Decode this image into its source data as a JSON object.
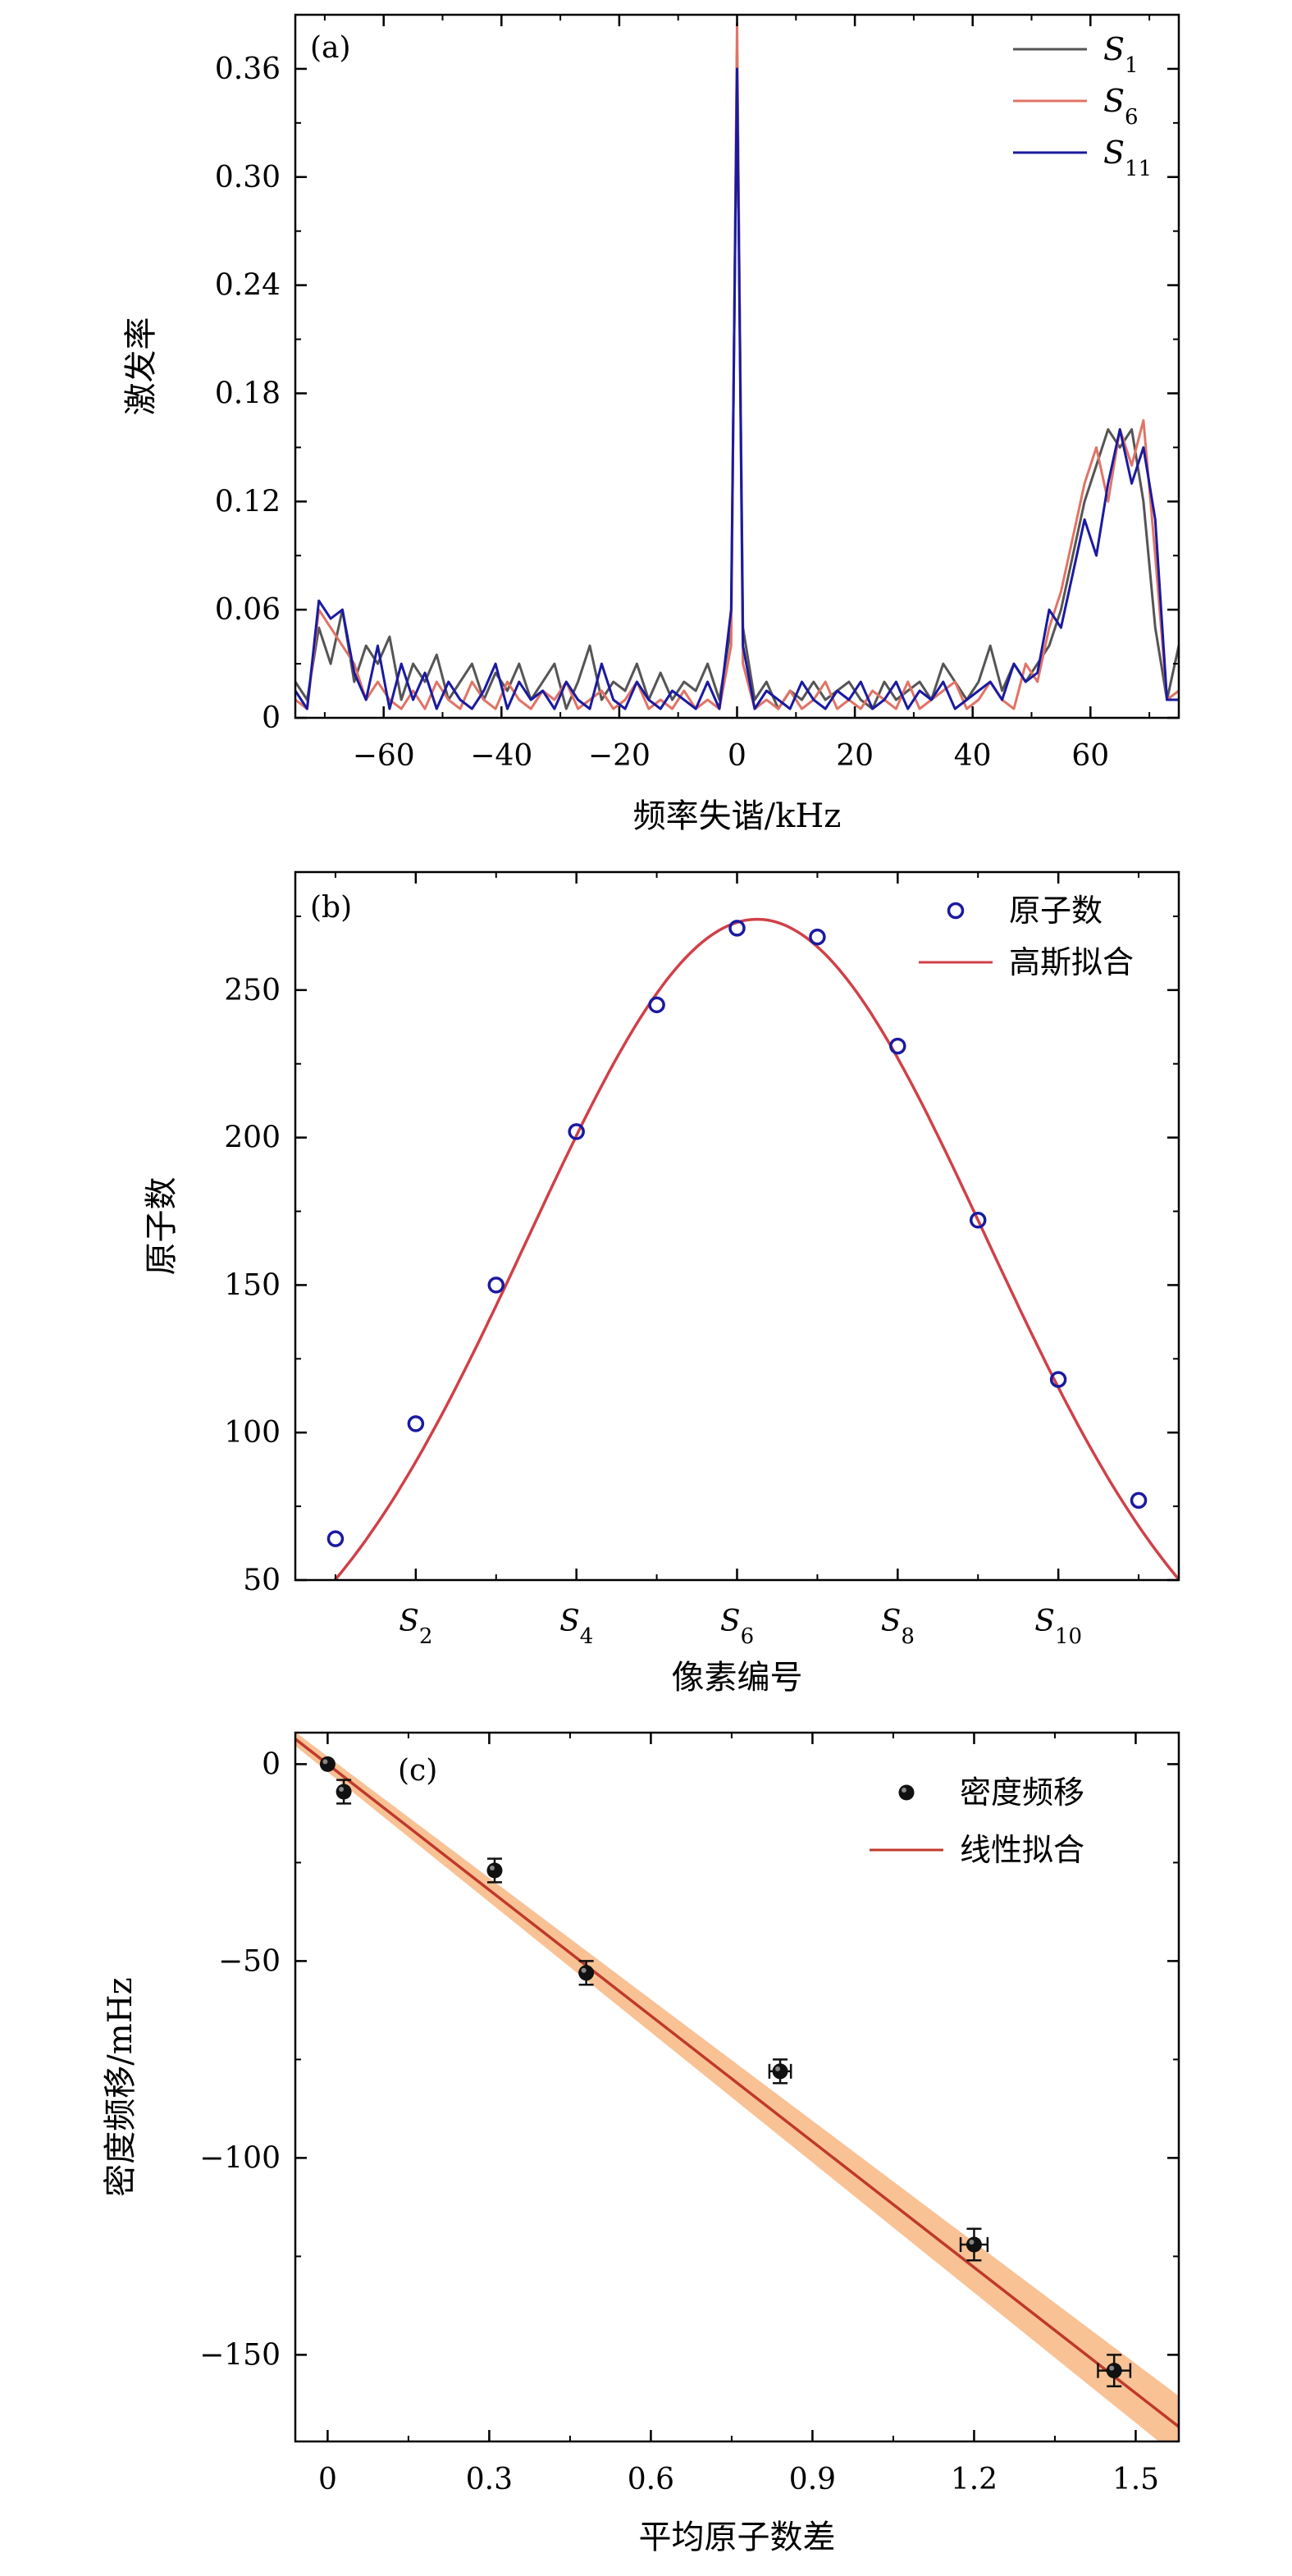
{
  "chart_data": [
    {
      "panel": "(a)",
      "type": "line",
      "xlabel": "频率失谐/kHz",
      "ylabel": "激发率",
      "xlim": [
        -75,
        75
      ],
      "ylim": [
        0,
        0.39
      ],
      "xticks": [
        -60,
        -40,
        -20,
        0,
        20,
        40,
        60
      ],
      "xtick_labels": [
        "−60",
        "−40",
        "−20",
        "0",
        "20",
        "40",
        "60"
      ],
      "yticks": [
        0,
        0.06,
        0.12,
        0.18,
        0.24,
        0.3,
        0.36
      ],
      "ytick_labels": [
        "0",
        "0.06",
        "0.12",
        "0.18",
        "0.24",
        "0.30",
        "0.36"
      ],
      "legend_position": "top-right",
      "grid": false,
      "series": [
        {
          "name": "S₁",
          "name_base": "S",
          "name_sub": "1",
          "color": "#555555",
          "x": [
            -75,
            -73,
            -71,
            -69,
            -67,
            -65,
            -63,
            -61,
            -59,
            -57,
            -55,
            -53,
            -51,
            -49,
            -47,
            -45,
            -43,
            -41,
            -39,
            -37,
            -35,
            -33,
            -31,
            -29,
            -27,
            -25,
            -23,
            -21,
            -19,
            -17,
            -15,
            -13,
            -11,
            -9,
            -7,
            -5,
            -3,
            -1,
            0,
            1,
            3,
            5,
            7,
            9,
            11,
            13,
            15,
            17,
            19,
            21,
            23,
            25,
            27,
            29,
            31,
            33,
            35,
            37,
            39,
            41,
            43,
            45,
            47,
            49,
            51,
            53,
            55,
            57,
            59,
            61,
            63,
            65,
            67,
            69,
            71,
            73,
            75
          ],
          "y": [
            0.02,
            0.01,
            0.05,
            0.03,
            0.06,
            0.02,
            0.04,
            0.03,
            0.045,
            0.01,
            0.03,
            0.02,
            0.035,
            0.01,
            0.02,
            0.03,
            0.01,
            0.025,
            0.015,
            0.03,
            0.01,
            0.02,
            0.03,
            0.005,
            0.02,
            0.04,
            0.01,
            0.02,
            0.015,
            0.03,
            0.01,
            0.025,
            0.01,
            0.02,
            0.015,
            0.03,
            0.01,
            0.05,
            0.37,
            0.05,
            0.01,
            0.02,
            0.005,
            0.015,
            0.01,
            0.02,
            0.01,
            0.015,
            0.02,
            0.01,
            0.005,
            0.02,
            0.01,
            0.015,
            0.02,
            0.01,
            0.03,
            0.02,
            0.01,
            0.02,
            0.04,
            0.015,
            0.03,
            0.02,
            0.03,
            0.04,
            0.06,
            0.09,
            0.12,
            0.14,
            0.16,
            0.15,
            0.16,
            0.12,
            0.05,
            0.01,
            0.04
          ]
        },
        {
          "name": "S₆",
          "name_base": "S",
          "name_sub": "6",
          "color": "#e07466",
          "x": [
            -75,
            -73,
            -71,
            -69,
            -67,
            -65,
            -63,
            -61,
            -59,
            -57,
            -55,
            -53,
            -51,
            -49,
            -47,
            -45,
            -43,
            -41,
            -39,
            -37,
            -35,
            -33,
            -31,
            -29,
            -27,
            -25,
            -23,
            -21,
            -19,
            -17,
            -15,
            -13,
            -11,
            -9,
            -7,
            -5,
            -3,
            -1,
            0,
            1,
            3,
            5,
            7,
            9,
            11,
            13,
            15,
            17,
            19,
            21,
            23,
            25,
            27,
            29,
            31,
            33,
            35,
            37,
            39,
            41,
            43,
            45,
            47,
            49,
            51,
            53,
            55,
            57,
            59,
            61,
            63,
            65,
            67,
            69,
            71,
            73,
            75
          ],
          "y": [
            0.01,
            0.005,
            0.06,
            0.05,
            0.04,
            0.03,
            0.01,
            0.02,
            0.01,
            0.005,
            0.015,
            0.005,
            0.02,
            0.01,
            0.005,
            0.02,
            0.01,
            0.005,
            0.02,
            0.01,
            0.005,
            0.015,
            0.01,
            0.02,
            0.005,
            0.01,
            0.015,
            0.005,
            0.01,
            0.02,
            0.005,
            0.01,
            0.005,
            0.015,
            0.005,
            0.01,
            0.005,
            0.04,
            0.385,
            0.03,
            0.005,
            0.01,
            0.005,
            0.015,
            0.005,
            0.01,
            0.02,
            0.005,
            0.01,
            0.005,
            0.015,
            0.01,
            0.005,
            0.02,
            0.005,
            0.01,
            0.015,
            0.02,
            0.005,
            0.01,
            0.02,
            0.01,
            0.005,
            0.03,
            0.02,
            0.05,
            0.07,
            0.1,
            0.13,
            0.15,
            0.12,
            0.16,
            0.14,
            0.165,
            0.09,
            0.01,
            0.015
          ]
        },
        {
          "name": "S₁₁",
          "name_base": "S",
          "name_sub": "11",
          "color": "#1a1aa0",
          "x": [
            -75,
            -73,
            -71,
            -69,
            -67,
            -65,
            -63,
            -61,
            -59,
            -57,
            -55,
            -53,
            -51,
            -49,
            -47,
            -45,
            -43,
            -41,
            -39,
            -37,
            -35,
            -33,
            -31,
            -29,
            -27,
            -25,
            -23,
            -21,
            -19,
            -17,
            -15,
            -13,
            -11,
            -9,
            -7,
            -5,
            -3,
            -1,
            0,
            1,
            3,
            5,
            7,
            9,
            11,
            13,
            15,
            17,
            19,
            21,
            23,
            25,
            27,
            29,
            31,
            33,
            35,
            37,
            39,
            41,
            43,
            45,
            47,
            49,
            51,
            53,
            55,
            57,
            59,
            61,
            63,
            65,
            67,
            69,
            71,
            73,
            75
          ],
          "y": [
            0.015,
            0.005,
            0.065,
            0.055,
            0.06,
            0.025,
            0.01,
            0.04,
            0.005,
            0.03,
            0.01,
            0.025,
            0.005,
            0.02,
            0.01,
            0.005,
            0.015,
            0.03,
            0.005,
            0.02,
            0.01,
            0.015,
            0.005,
            0.02,
            0.01,
            0.005,
            0.03,
            0.01,
            0.005,
            0.02,
            0.01,
            0.005,
            0.015,
            0.01,
            0.005,
            0.02,
            0.005,
            0.06,
            0.36,
            0.04,
            0.005,
            0.015,
            0.01,
            0.005,
            0.02,
            0.01,
            0.005,
            0.015,
            0.01,
            0.02,
            0.005,
            0.01,
            0.02,
            0.005,
            0.015,
            0.01,
            0.02,
            0.005,
            0.01,
            0.015,
            0.02,
            0.01,
            0.03,
            0.02,
            0.025,
            0.06,
            0.05,
            0.08,
            0.11,
            0.09,
            0.13,
            0.16,
            0.13,
            0.15,
            0.11,
            0.01,
            0.01
          ]
        }
      ]
    },
    {
      "panel": "(b)",
      "type": "scatter",
      "xlabel": "像素编号",
      "ylabel": "原子数",
      "xlim": [
        0.5,
        11.5
      ],
      "ylim": [
        50,
        290
      ],
      "xticks": [
        2,
        4,
        6,
        8,
        10
      ],
      "xtick_labels": [
        {
          "base": "S",
          "sub": "2"
        },
        {
          "base": "S",
          "sub": "4"
        },
        {
          "base": "S",
          "sub": "6"
        },
        {
          "base": "S",
          "sub": "8"
        },
        {
          "base": "S",
          "sub": "10"
        }
      ],
      "yticks": [
        50,
        100,
        150,
        200,
        250
      ],
      "ytick_labels": [
        "50",
        "100",
        "150",
        "200",
        "250"
      ],
      "legend_position": "top-right",
      "grid": false,
      "series": [
        {
          "name": "原子数",
          "marker": "open-circle",
          "color": "#1a1aa0",
          "x": [
            1,
            2,
            3,
            4,
            5,
            6,
            7,
            8,
            9,
            10,
            11
          ],
          "y": [
            64,
            103,
            150,
            202,
            245,
            271,
            268,
            231,
            172,
            118,
            77
          ]
        },
        {
          "name": "高斯拟合",
          "marker": "line",
          "color": "#d04048",
          "fit": {
            "kind": "gaussian",
            "amplitude": 274,
            "center": 6.25,
            "sigma": 2.85
          }
        }
      ]
    },
    {
      "panel": "(c)",
      "type": "scatter",
      "xlabel": "平均原子数差",
      "ylabel": "密度频移/mHz",
      "xlim": [
        -0.06,
        1.58
      ],
      "ylim": [
        -172,
        8
      ],
      "xticks": [
        0,
        0.3,
        0.6,
        0.9,
        1.2,
        1.5
      ],
      "xtick_labels": [
        "0",
        "0.3",
        "0.6",
        "0.9",
        "1.2",
        "1.5"
      ],
      "yticks": [
        0,
        -50,
        -100,
        -150
      ],
      "ytick_labels": [
        "0",
        "−50",
        "−100",
        "−150"
      ],
      "legend_position": "top-right",
      "grid": false,
      "series": [
        {
          "name": "密度频移",
          "marker": "filled-circle",
          "color": "#111111",
          "x": [
            0,
            0.03,
            0.31,
            0.48,
            0.84,
            1.2,
            1.46
          ],
          "y": [
            0,
            -7,
            -27,
            -53,
            -78,
            -122,
            -154
          ],
          "xerr": [
            0,
            0,
            0,
            0,
            0.02,
            0.025,
            0.03
          ],
          "yerr": [
            0,
            3,
            3,
            3,
            3,
            4,
            4
          ]
        },
        {
          "name": "线性拟合",
          "marker": "line",
          "color": "#c0392b",
          "band_color": "#f7b782",
          "fit": {
            "kind": "linear",
            "slope": -106.5,
            "intercept": 0,
            "band_halfwidth_per_x": 4
          }
        }
      ]
    }
  ]
}
